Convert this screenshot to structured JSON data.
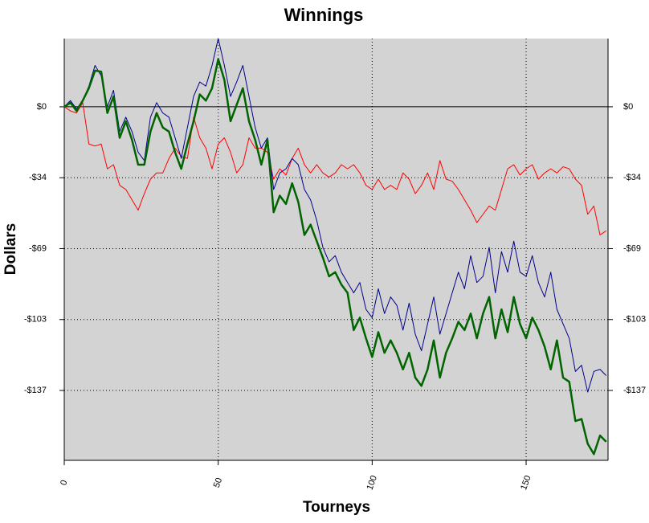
{
  "chart_data": {
    "type": "line",
    "title": "Winnings",
    "xlabel": "Tourneys",
    "ylabel": "Dollars",
    "x": [
      0,
      2,
      4,
      6,
      8,
      10,
      12,
      14,
      16,
      18,
      20,
      22,
      24,
      26,
      28,
      30,
      32,
      34,
      36,
      38,
      40,
      42,
      44,
      46,
      48,
      50,
      52,
      54,
      56,
      58,
      60,
      62,
      64,
      66,
      68,
      70,
      72,
      74,
      76,
      78,
      80,
      82,
      84,
      86,
      88,
      90,
      92,
      94,
      96,
      98,
      100,
      102,
      104,
      106,
      108,
      110,
      112,
      114,
      116,
      118,
      120,
      122,
      124,
      126,
      128,
      130,
      132,
      134,
      136,
      138,
      140,
      142,
      144,
      146,
      148,
      150,
      152,
      154,
      156,
      158,
      160,
      162,
      164,
      166,
      168,
      170,
      172,
      174,
      176
    ],
    "series": [
      {
        "color": "#ff0000",
        "width": 1,
        "values": [
          0,
          -2,
          -3,
          2,
          -18,
          -19,
          -18,
          -30,
          -28,
          -38,
          -40,
          -45,
          -50,
          -42,
          -35,
          -32,
          -32,
          -25,
          -20,
          -24,
          -25,
          -5,
          -15,
          -20,
          -30,
          -18,
          -15,
          -22,
          -32,
          -28,
          -15,
          -20,
          -20,
          -22,
          -35,
          -30,
          -33,
          -25,
          -20,
          -28,
          -32,
          -28,
          -32,
          -34,
          -32,
          -28,
          -30,
          -28,
          -32,
          -38,
          -40,
          -35,
          -40,
          -38,
          -40,
          -32,
          -35,
          -42,
          -38,
          -32,
          -40,
          -26,
          -35,
          -36,
          -40,
          -45,
          -50,
          -56,
          -52,
          -48,
          -50,
          -40,
          -30,
          -28,
          -33,
          -30,
          -28,
          -35,
          -32,
          -30,
          -32,
          -29,
          -30,
          -35,
          -38,
          -52,
          -48,
          -62,
          -60
        ]
      },
      {
        "color": "#00008b",
        "width": 1,
        "values": [
          0,
          3,
          -1,
          3,
          10,
          20,
          15,
          0,
          8,
          -12,
          -5,
          -12,
          -22,
          -26,
          -5,
          2,
          -3,
          -5,
          -15,
          -25,
          -10,
          5,
          12,
          10,
          20,
          33,
          20,
          5,
          12,
          20,
          5,
          -10,
          -20,
          -15,
          -40,
          -32,
          -30,
          -25,
          -28,
          -40,
          -45,
          -55,
          -68,
          -75,
          -72,
          -80,
          -85,
          -90,
          -85,
          -98,
          -102,
          -88,
          -100,
          -92,
          -96,
          -108,
          -95,
          -110,
          -118,
          -105,
          -92,
          -110,
          -100,
          -90,
          -80,
          -88,
          -72,
          -85,
          -82,
          -68,
          -90,
          -70,
          -80,
          -65,
          -80,
          -82,
          -72,
          -85,
          -92,
          -80,
          -98,
          -105,
          -112,
          -128,
          -125,
          -138,
          -128,
          -127,
          -130
        ]
      },
      {
        "color": "#006400",
        "width": 2.5,
        "values": [
          0,
          2,
          -2,
          3,
          9,
          17.5,
          17,
          -3,
          5,
          -15,
          -7,
          -16,
          -28,
          -28,
          -12,
          -3,
          -10,
          -12,
          -22,
          -30,
          -18,
          -7,
          6,
          3,
          9,
          23,
          13,
          -7,
          1,
          9,
          -7,
          -16,
          -28,
          -16,
          -51,
          -43,
          -47,
          -37,
          -46,
          -62,
          -57,
          -65,
          -73,
          -82,
          -80,
          -86,
          -90,
          -108,
          -102,
          -112,
          -121,
          -109,
          -119,
          -113,
          -119,
          -127,
          -119,
          -131,
          -135,
          -127,
          -113,
          -131,
          -119,
          -112,
          -104,
          -108,
          -100,
          -112,
          -100,
          -92,
          -112,
          -98,
          -109,
          -92,
          -105,
          -112,
          -102,
          -108,
          -116,
          -127,
          -113,
          -131,
          -133,
          -152,
          -151,
          -163,
          -168,
          -159,
          -162
        ]
      }
    ],
    "xlim": [
      0,
      176.6
    ],
    "ylim": [
      -171,
      33
    ],
    "xticks": [
      0,
      50,
      100,
      150
    ],
    "yticks": [
      {
        "value": 0,
        "label": "$0"
      },
      {
        "value": -34.3,
        "label": "-$34"
      },
      {
        "value": -68.6,
        "label": "-$69"
      },
      {
        "value": -102.9,
        "label": "-$103"
      },
      {
        "value": -137.2,
        "label": "-$137"
      }
    ],
    "grid": true
  }
}
